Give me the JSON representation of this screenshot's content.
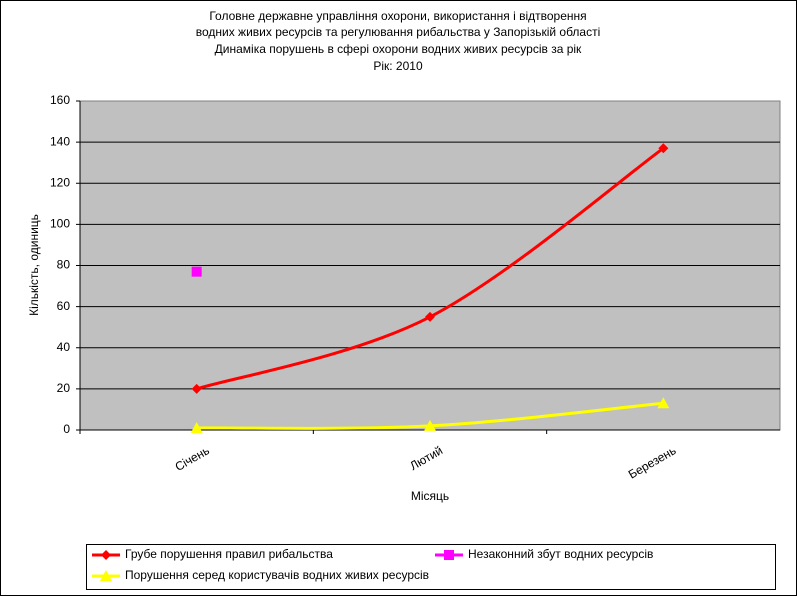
{
  "chart_data": {
    "type": "line",
    "title": [
      "Головне державне управління охорони, використання і відтворення",
      "водних живих ресурсів та регулювання рибальства у Запорізькій області",
      "Динаміка порушень в сфері охорони водних живих ресурсів за рік",
      "Рік: 2010"
    ],
    "x_label": "Місяць",
    "y_label": "Кількість, одиниць",
    "categories": [
      "Січень",
      "Лютий",
      "Березень"
    ],
    "series": [
      {
        "name": "Грубе порушення правил рибальства",
        "color": "#ff0000",
        "marker": "diamond",
        "values": [
          20,
          55,
          137
        ]
      },
      {
        "name": "Незаконний збут водних ресурсів",
        "color": "#ff00ff",
        "marker": "square",
        "values": [
          77,
          null,
          null
        ]
      },
      {
        "name": "Порушення серед користувачів водних живих ресурсів",
        "color": "#ffff00",
        "marker": "triangle",
        "values": [
          1,
          2,
          13
        ]
      }
    ],
    "ylim": [
      0,
      160
    ],
    "yticks": [
      0,
      20,
      40,
      60,
      80,
      100,
      120,
      140,
      160
    ],
    "grid": true,
    "smooth": true
  }
}
